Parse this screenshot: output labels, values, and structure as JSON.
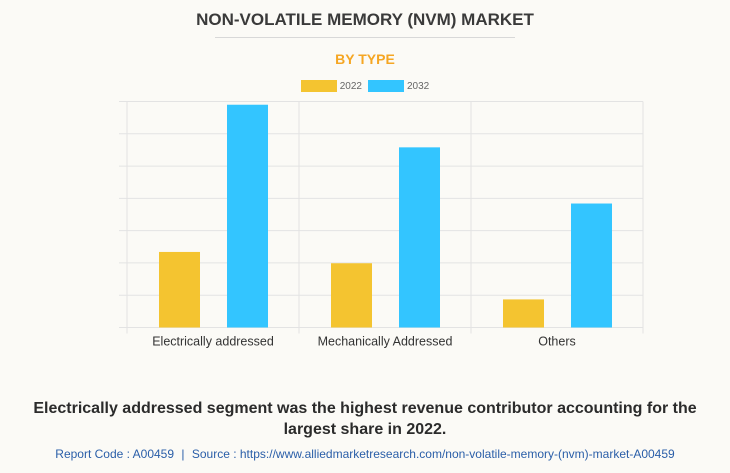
{
  "title": "NON-VOLATILE MEMORY (NVM) MARKET",
  "subtitle": "BY TYPE",
  "colors": {
    "2022": "#f4c430",
    "2032": "#33c5ff",
    "subtitle": "#f5a623"
  },
  "chart_data": {
    "type": "bar",
    "categories": [
      "Electrically addressed",
      "Mechanically Addressed",
      "Others"
    ],
    "series": [
      {
        "name": "2022",
        "values": [
          2.34,
          1.99,
          0.87
        ]
      },
      {
        "name": "2032",
        "values": [
          6.9,
          5.58,
          3.84
        ]
      }
    ],
    "ylim": [
      0,
      7
    ],
    "y_ticks_labeled": false,
    "grid": true,
    "legend": "top-center",
    "xlabel": "",
    "ylabel": ""
  },
  "note": "Electrically addressed segment was the highest revenue contributor accounting for the largest share in 2022.",
  "footer": {
    "report_code": "Report Code : A00459",
    "separator": "|",
    "source": "Source : https://www.alliedmarketresearch.com/non-volatile-memory-(nvm)-market-A00459"
  }
}
